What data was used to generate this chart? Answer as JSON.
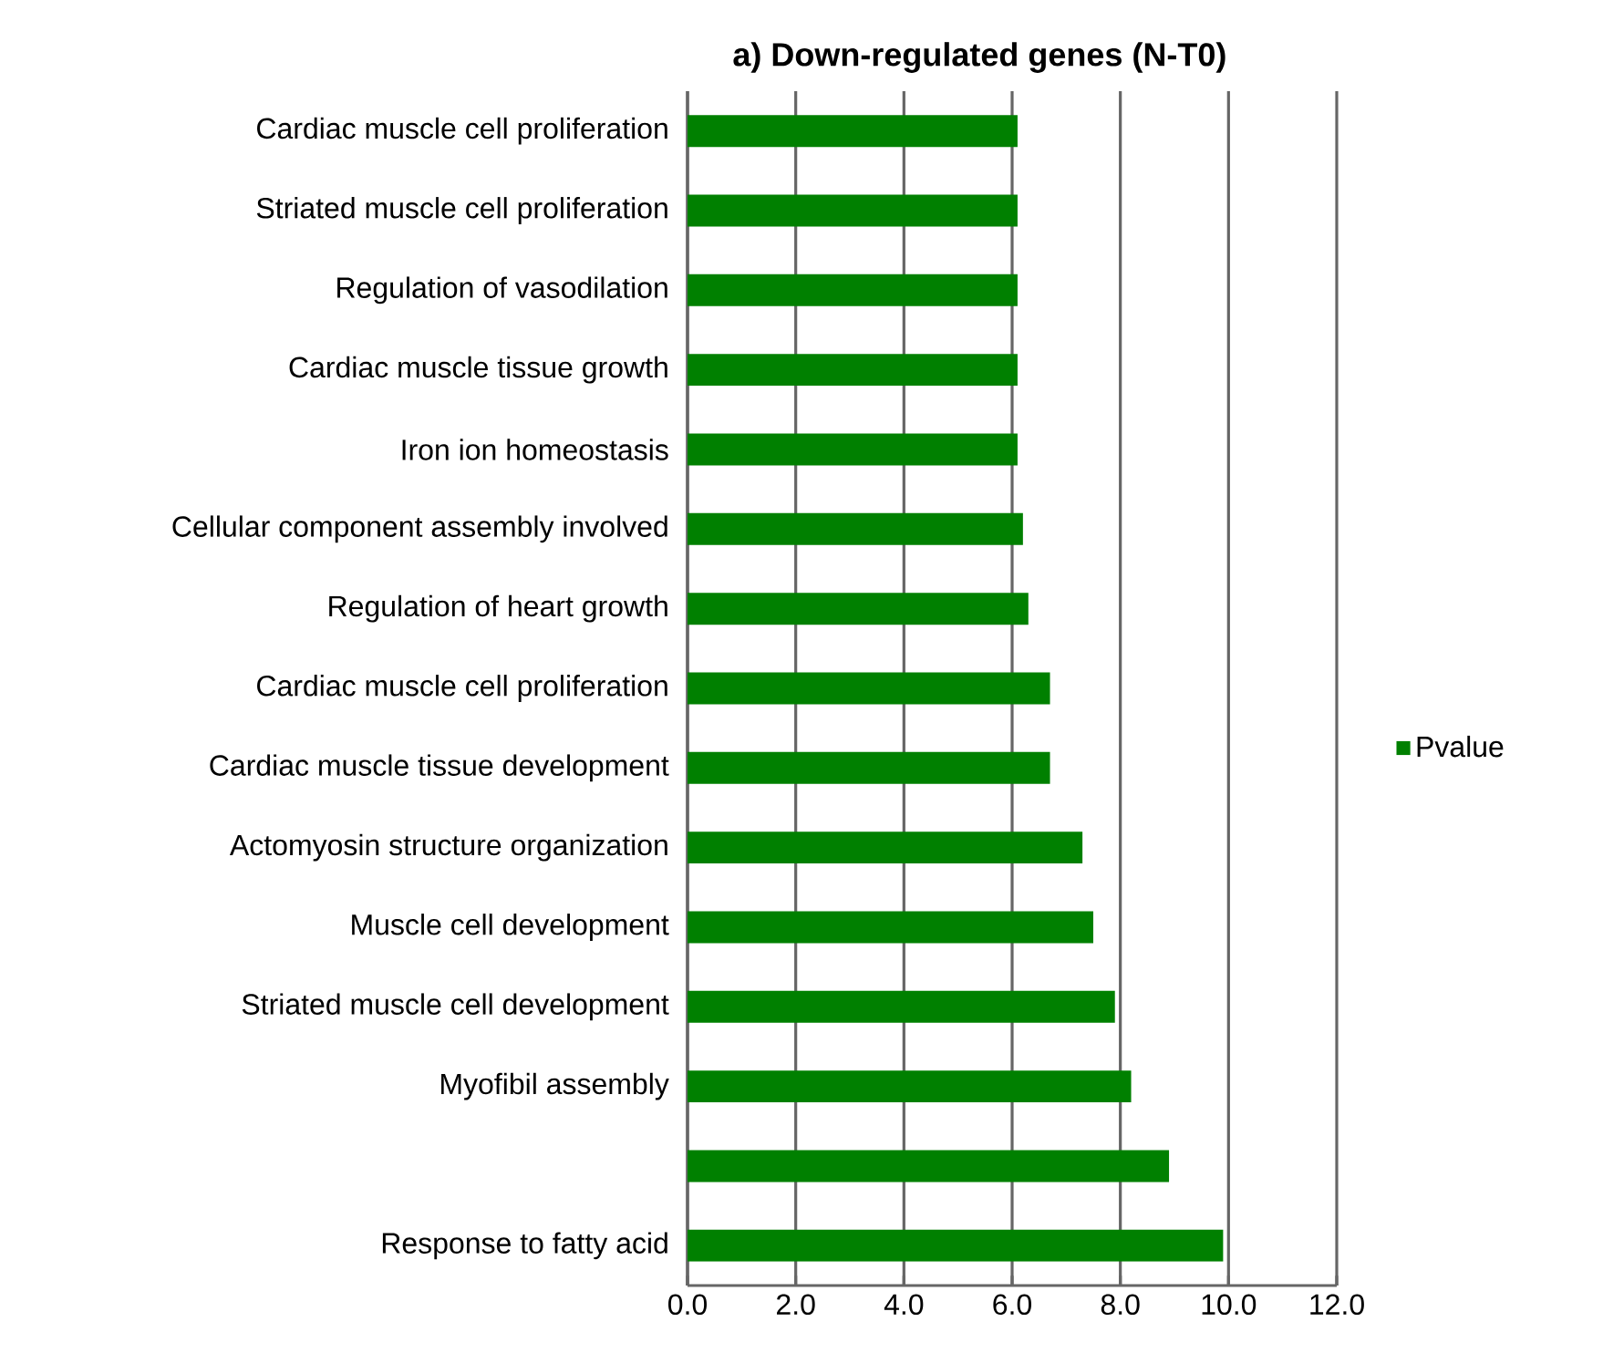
{
  "chart_data": {
    "type": "bar",
    "orientation": "horizontal",
    "title": "a) Down-regulated genes (N-T0)",
    "categories": [
      "Cardiac muscle cell proliferation",
      "Striated muscle cell proliferation",
      "Regulation of vasodilation",
      "Cardiac muscle tissue growth",
      "Iron ion homeostasis",
      "Cellular component assembly involved",
      "Regulation of heart growth",
      "Cardiac muscle cell proliferation",
      "Cardiac muscle tissue development",
      "Actomyosin structure organization",
      "Muscle cell development",
      "Striated muscle cell development",
      "Myofibil assembly",
      null,
      "Response to fatty acid"
    ],
    "series": [
      {
        "name": "Pvalue",
        "color": "#008000",
        "values": [
          6.1,
          6.1,
          6.1,
          6.1,
          6.1,
          6.2,
          6.3,
          6.7,
          6.7,
          7.3,
          7.5,
          7.9,
          8.2,
          8.9,
          9.9
        ]
      }
    ],
    "xlim": [
      0,
      12
    ],
    "xticks": [
      {
        "value": 0,
        "label": "0.0"
      },
      {
        "value": 2,
        "label": "2.0"
      },
      {
        "value": 4,
        "label": "4.0"
      },
      {
        "value": 6,
        "label": "6.0"
      },
      {
        "value": 8,
        "label": "8.0"
      },
      {
        "value": 10,
        "label": "10.0"
      },
      {
        "value": 12,
        "label": "12.0"
      }
    ],
    "grid": "x",
    "legend": "right"
  }
}
